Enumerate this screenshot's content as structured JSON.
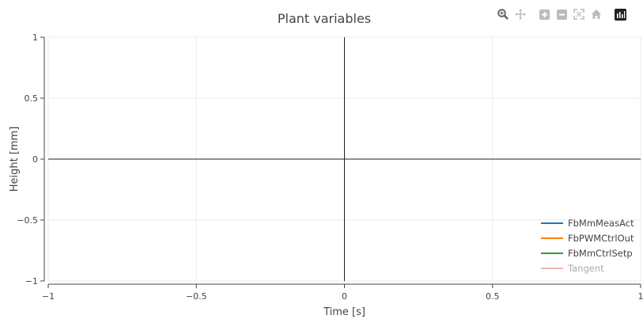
{
  "chart_data": {
    "type": "line",
    "title": "Plant variables",
    "xlabel": "Time [s]",
    "ylabel": "Height [mm]",
    "xlim": [
      -1,
      1
    ],
    "ylim": [
      -1,
      1
    ],
    "x_ticks": [
      -1,
      -0.5,
      0,
      0.5,
      1
    ],
    "x_tick_labels": [
      "−1",
      "−0.5",
      "0",
      "0.5",
      "1"
    ],
    "y_ticks": [
      -1,
      -0.5,
      0,
      0.5,
      1
    ],
    "y_tick_labels": [
      "−1",
      "−0.5",
      "0",
      "0.5",
      "1"
    ],
    "grid": true,
    "legend_position": "bottom-right",
    "series": [
      {
        "name": "FbMmMeasAct",
        "color": "#1f77b4",
        "x": [],
        "y": [],
        "visible": true
      },
      {
        "name": "FbPWMCtrlOut",
        "color": "#ff7f0e",
        "x": [],
        "y": [],
        "visible": true
      },
      {
        "name": "FbMmCtrlSetp",
        "color": "#2ca02c",
        "x": [],
        "y": [],
        "visible": true
      },
      {
        "name": "Tangent",
        "color": "#f4b6b6",
        "x": [],
        "y": [],
        "visible": false
      }
    ]
  },
  "modebar": {
    "icons": [
      "zoom-icon",
      "pan-icon",
      "zoom-in-icon",
      "zoom-out-icon",
      "autoscale-icon",
      "reset-axes-icon",
      "plotly-logo-icon"
    ]
  }
}
